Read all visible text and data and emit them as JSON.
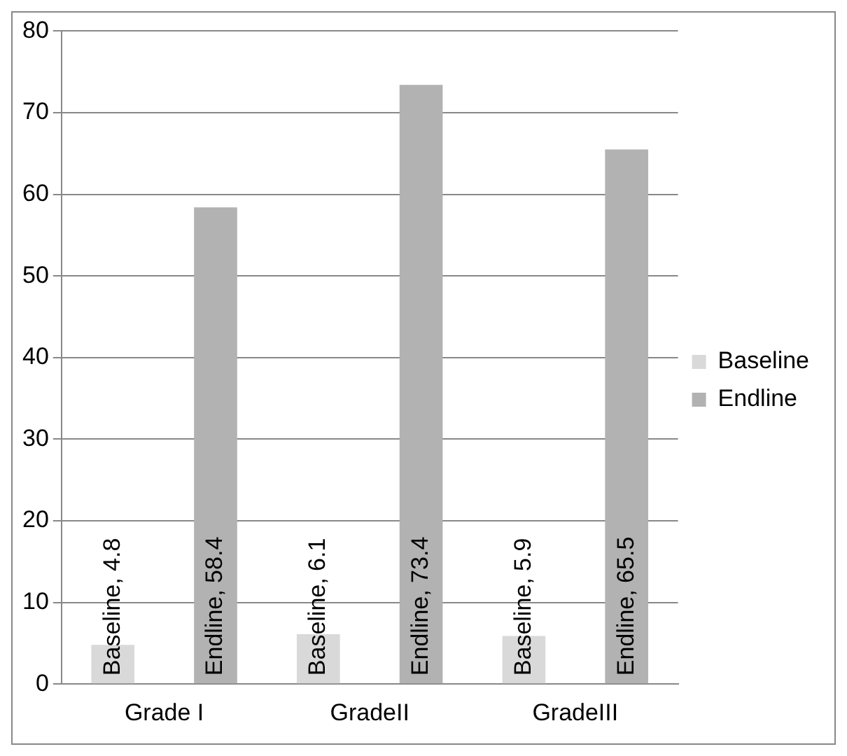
{
  "chart_data": {
    "type": "bar",
    "categories": [
      "Grade I",
      "GradeII",
      "GradeIII"
    ],
    "series": [
      {
        "name": "Baseline",
        "color": "#d9d9d9",
        "values": [
          4.8,
          6.1,
          5.9
        ],
        "value_labels": [
          "Baseline, 4.8",
          "Baseline, 6.1",
          "Baseline, 5.9"
        ]
      },
      {
        "name": "Endline",
        "color": "#b2b2b2",
        "values": [
          58.4,
          73.4,
          65.5
        ],
        "value_labels": [
          "Endline, 58.4",
          "Endline, 73.4",
          "Endline, 65.5"
        ]
      }
    ],
    "ylim": [
      0,
      80
    ],
    "yticks": [
      0,
      10,
      20,
      30,
      40,
      50,
      60,
      70,
      80
    ],
    "grid": "y",
    "legend": "right"
  }
}
